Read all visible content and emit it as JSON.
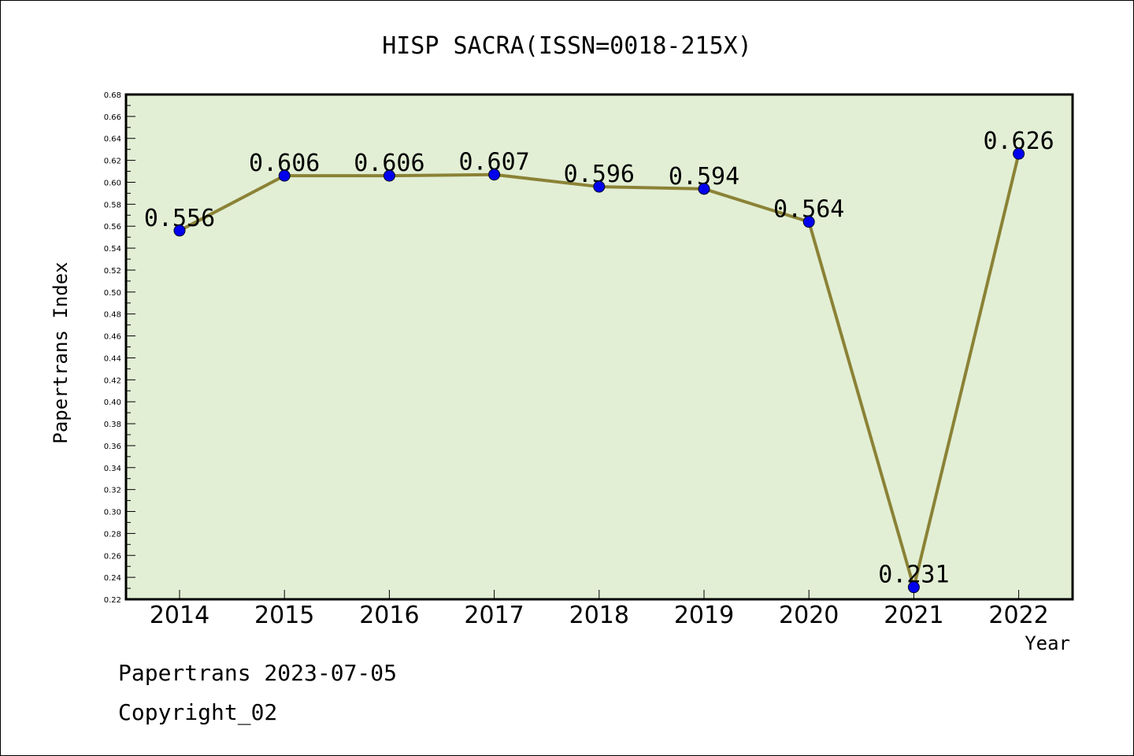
{
  "chart_data": {
    "type": "line",
    "title": "HISP SACRA(ISSN=0018-215X)",
    "xlabel": "Year",
    "ylabel": "Papertrans Index",
    "categories": [
      "2014",
      "2015",
      "2016",
      "2017",
      "2018",
      "2019",
      "2020",
      "2021",
      "2022"
    ],
    "values": [
      0.556,
      0.606,
      0.606,
      0.607,
      0.596,
      0.594,
      0.564,
      0.231,
      0.626
    ],
    "value_labels": [
      "0.556",
      "0.606",
      "0.606",
      "0.607",
      "0.596",
      "0.594",
      "0.564",
      "0.231",
      "0.626"
    ],
    "ylim": [
      0.22,
      0.68
    ],
    "yticks": [
      "0.22",
      "0.24",
      "0.26",
      "0.28",
      "0.30",
      "0.32",
      "0.34",
      "0.36",
      "0.38",
      "0.40",
      "0.42",
      "0.44",
      "0.46",
      "0.48",
      "0.50",
      "0.52",
      "0.54",
      "0.56",
      "0.58",
      "0.60",
      "0.62",
      "0.64",
      "0.66",
      "0.68"
    ],
    "grid": false,
    "colors": {
      "plot_background": "#e2efd5",
      "line": "#8b8236",
      "marker": "#0000ee"
    }
  },
  "footer": {
    "line1": "Papertrans 2023-07-05",
    "line2": "Copyright_02"
  }
}
